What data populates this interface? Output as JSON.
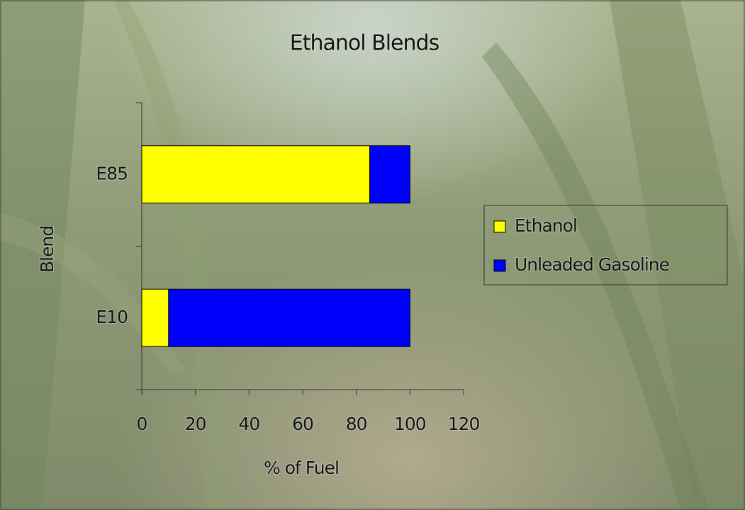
{
  "chart_data": {
    "type": "stacked_barh",
    "title": "Ethanol Blends",
    "x_label": "% of Fuel",
    "y_label": "Blend",
    "categories": [
      "E85",
      "E10"
    ],
    "series": [
      {
        "name": "Ethanol",
        "color": "#ffff00",
        "values": [
          85,
          10
        ]
      },
      {
        "name": "Unleaded Gasoline",
        "color": "#0000ff",
        "values": [
          15,
          90
        ]
      }
    ],
    "xlim": [
      0,
      120
    ],
    "xticks": [
      0,
      20,
      40,
      60,
      80,
      100,
      120
    ],
    "legend": "right"
  }
}
